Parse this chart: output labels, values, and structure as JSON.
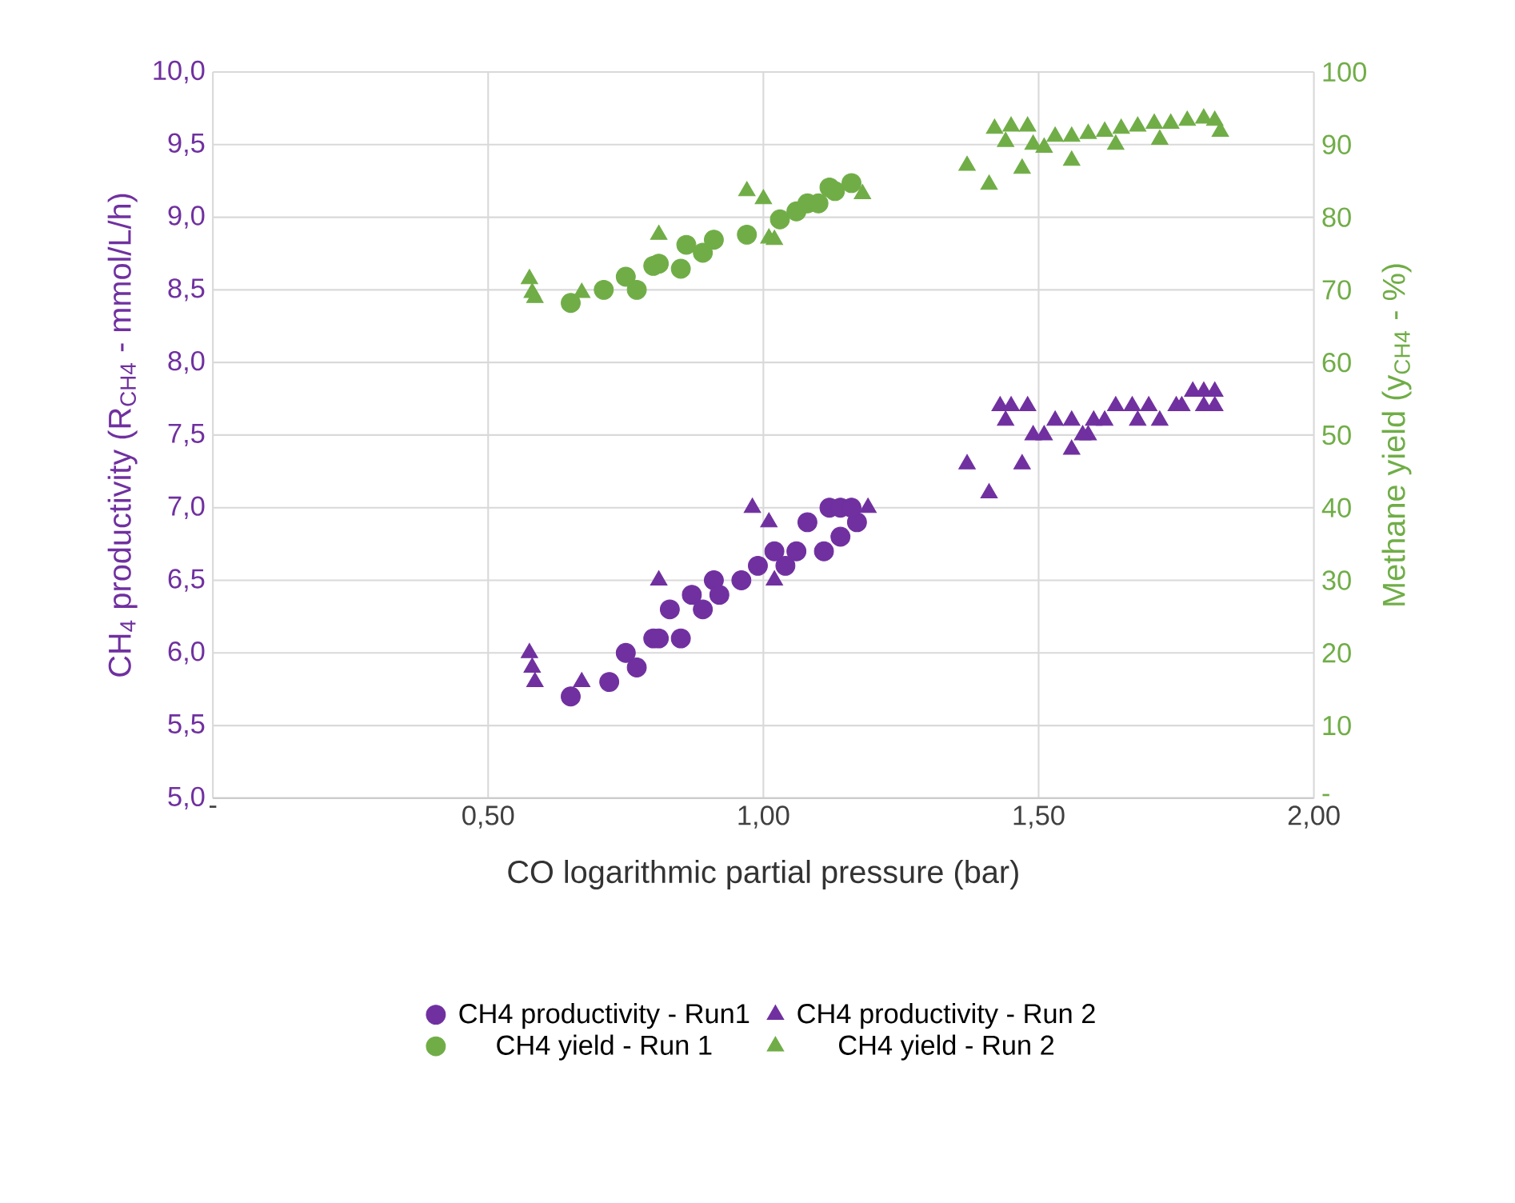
{
  "chart_data": {
    "type": "scatter",
    "xlabel": "CO logarithmic partial pressure (bar)",
    "ylabel": "CH$_{4}$ productivity (R$_{CH4}$ - mmol/L/h)",
    "y2label": "Methane yield (y$_{CH4}$ - %)",
    "xlim": [
      0,
      2
    ],
    "xticks": [
      {
        "value": 0,
        "label": "-"
      },
      {
        "value": 0.5,
        "label": "0,50"
      },
      {
        "value": 1,
        "label": "1,00"
      },
      {
        "value": 1.5,
        "label": "1,50"
      },
      {
        "value": 2,
        "label": "2,00"
      }
    ],
    "ylim": [
      5,
      10
    ],
    "yticks": [
      {
        "value": 5,
        "label": "5,0"
      },
      {
        "value": 5.5,
        "label": "5,5"
      },
      {
        "value": 6,
        "label": "6,0"
      },
      {
        "value": 6.5,
        "label": "6,5"
      },
      {
        "value": 7,
        "label": "7,0"
      },
      {
        "value": 7.5,
        "label": "7,5"
      },
      {
        "value": 8,
        "label": "8,0"
      },
      {
        "value": 8.5,
        "label": "8,5"
      },
      {
        "value": 9,
        "label": "9,0"
      },
      {
        "value": 9.5,
        "label": "9,5"
      },
      {
        "value": 10,
        "label": "10,0"
      }
    ],
    "y2lim": [
      0,
      100
    ],
    "y2ticks": [
      {
        "value": 0,
        "label": "-"
      },
      10,
      20,
      30,
      40,
      50,
      60,
      70,
      80,
      90,
      100
    ],
    "grid": true,
    "legend": "bottom",
    "series": [
      {
        "name": "CH4 productivity - Run1",
        "color": "#7030a0",
        "marker": "circle",
        "x": [
          0.65,
          0.72,
          0.75,
          0.77,
          0.8,
          0.81,
          0.85,
          0.83,
          0.87,
          0.89,
          0.91,
          0.92,
          0.96,
          0.99,
          1.02,
          1.04,
          1.06,
          1.08,
          1.11,
          1.12,
          1.14,
          1.17,
          1.14,
          1.16
        ],
        "values": [
          5.7,
          5.8,
          6.0,
          5.9,
          6.1,
          6.1,
          6.1,
          6.3,
          6.4,
          6.3,
          6.5,
          6.4,
          6.5,
          6.6,
          6.7,
          6.6,
          6.7,
          6.9,
          6.7,
          7.0,
          6.8,
          6.9,
          7.0,
          7.0
        ]
      },
      {
        "name": "CH4 productivity - Run 2",
        "color": "#7030a0",
        "marker": "triangle",
        "x": [
          0.575,
          0.58,
          0.585,
          0.67,
          0.81,
          0.98,
          1.01,
          1.02,
          1.19,
          1.37,
          1.41,
          1.47,
          1.43,
          1.44,
          1.45,
          1.48,
          1.49,
          1.51,
          1.53,
          1.56,
          1.56,
          1.59,
          1.6,
          1.64,
          1.67,
          1.7,
          1.72,
          1.75,
          1.78,
          1.8,
          1.82,
          1.82,
          1.8,
          1.76,
          1.68,
          1.62,
          1.58
        ],
        "values": [
          6.0,
          5.9,
          5.8,
          5.8,
          6.5,
          7.0,
          6.9,
          6.5,
          7.0,
          7.3,
          7.1,
          7.3,
          7.7,
          7.6,
          7.7,
          7.7,
          7.5,
          7.5,
          7.6,
          7.4,
          7.6,
          7.5,
          7.6,
          7.7,
          7.7,
          7.7,
          7.6,
          7.7,
          7.8,
          7.8,
          7.8,
          7.7,
          7.7,
          7.7,
          7.6,
          7.6,
          7.5
        ]
      },
      {
        "name": "CH4 yield - Run 1",
        "color": "#70ad47",
        "marker": "circle",
        "axis": "y2",
        "x": [
          0.65,
          0.71,
          0.75,
          0.77,
          0.8,
          0.81,
          0.85,
          0.86,
          0.89,
          0.91,
          0.97,
          1.03,
          1.06,
          1.08,
          1.1,
          1.12,
          1.13,
          1.16
        ],
        "values": [
          68.2,
          70,
          71.8,
          70,
          73.3,
          73.6,
          72.9,
          76.2,
          75.1,
          76.9,
          77.6,
          79.7,
          80.8,
          81.9,
          81.9,
          84.1,
          83.6,
          84.7
        ]
      },
      {
        "name": "CH4 yield - Run 2",
        "color": "#70ad47",
        "marker": "triangle",
        "axis": "y2",
        "x": [
          0.575,
          0.58,
          0.585,
          0.67,
          0.81,
          0.97,
          1.0,
          1.01,
          1.02,
          1.18,
          1.37,
          1.41,
          1.47,
          1.56,
          1.42,
          1.44,
          1.45,
          1.48,
          1.49,
          1.51,
          1.53,
          1.56,
          1.59,
          1.62,
          1.65,
          1.68,
          1.71,
          1.74,
          1.77,
          1.8,
          1.82,
          1.83,
          1.64,
          1.72
        ],
        "values": [
          71.5,
          69.6,
          68.9,
          69.6,
          77.6,
          83.6,
          82.5,
          77.1,
          76.9,
          83.2,
          87.1,
          84.5,
          86.7,
          87.8,
          92.2,
          90.4,
          92.5,
          92.5,
          90.0,
          89.6,
          91.1,
          91.1,
          91.5,
          91.8,
          92.2,
          92.5,
          92.9,
          92.9,
          93.3,
          93.6,
          93.3,
          91.8,
          90.0,
          90.7
        ]
      }
    ]
  }
}
